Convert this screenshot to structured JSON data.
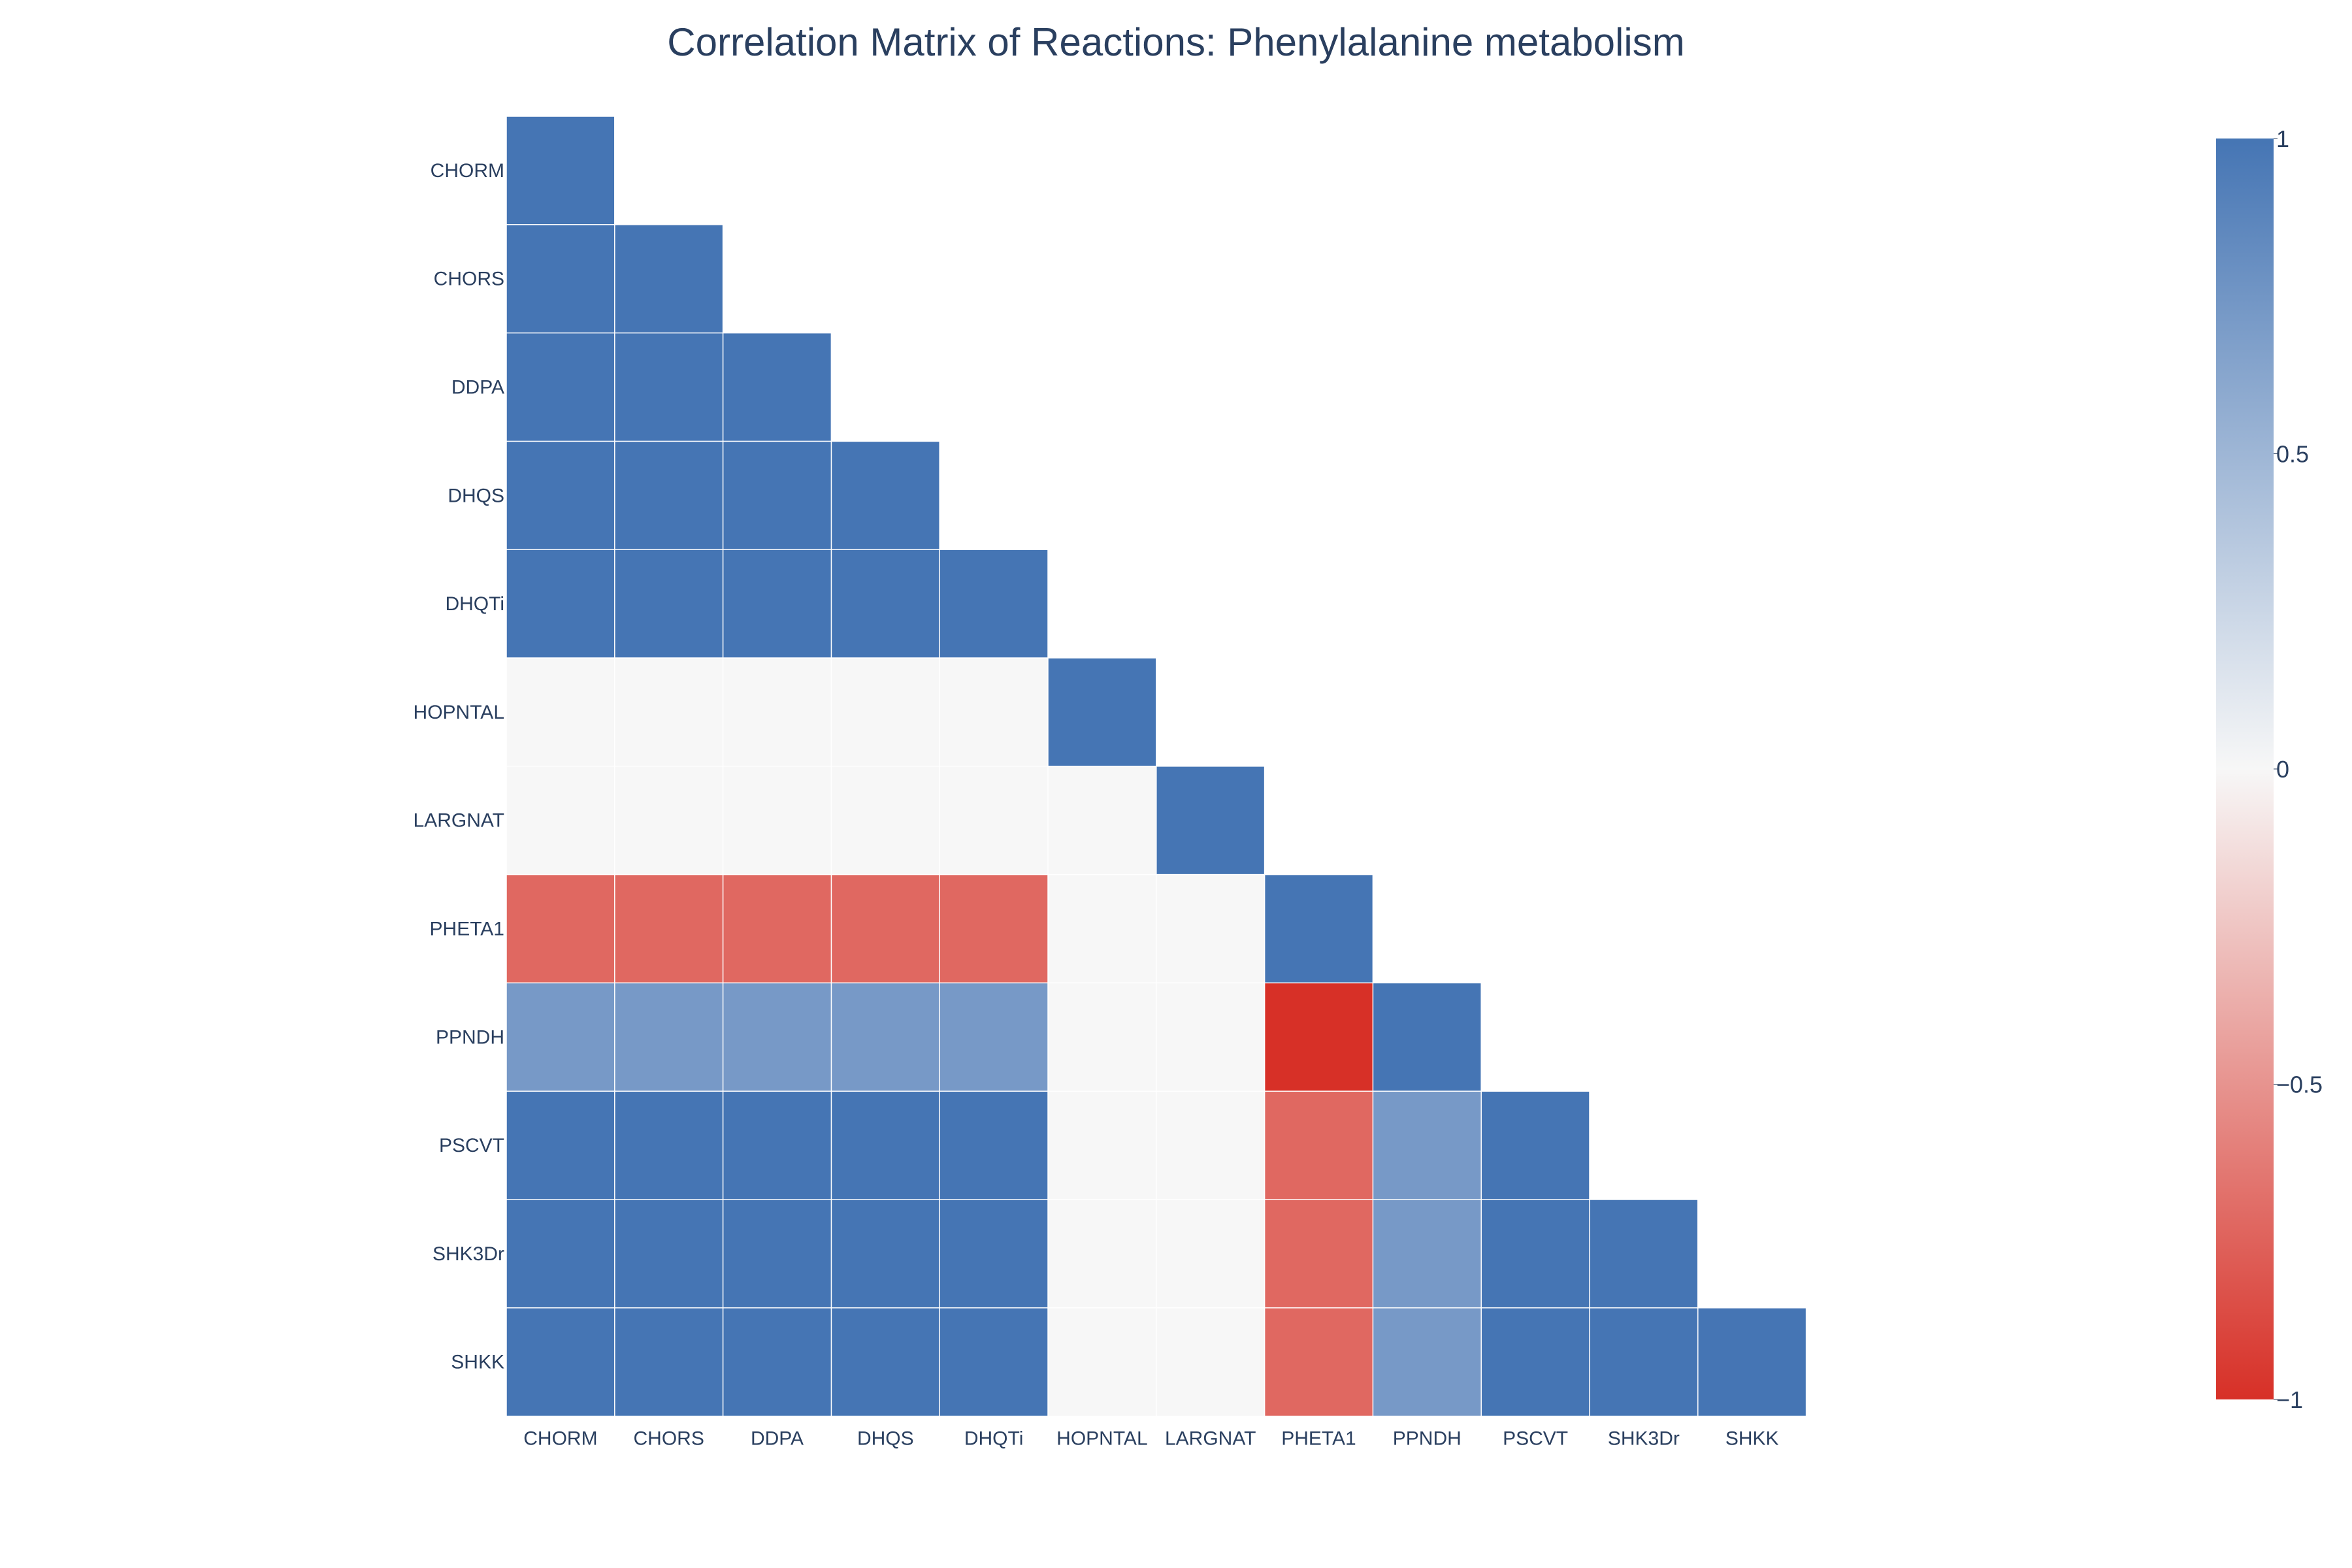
{
  "chart_data": {
    "type": "heatmap",
    "title": "Correlation Matrix of Reactions: Phenylalanine metabolism",
    "xlabel": "",
    "ylabel": "",
    "lower_triangle_only": true,
    "categories": [
      "CHORM",
      "CHORS",
      "DDPA",
      "DHQS",
      "DHQTi",
      "HOPNTAL",
      "LARGNAT",
      "PHETA1",
      "PPNDH",
      "PSCVT",
      "SHK3Dr",
      "SHKK"
    ],
    "matrix": [
      [
        1.0,
        null,
        null,
        null,
        null,
        null,
        null,
        null,
        null,
        null,
        null,
        null
      ],
      [
        1.0,
        1.0,
        null,
        null,
        null,
        null,
        null,
        null,
        null,
        null,
        null,
        null
      ],
      [
        1.0,
        1.0,
        1.0,
        null,
        null,
        null,
        null,
        null,
        null,
        null,
        null,
        null
      ],
      [
        1.0,
        1.0,
        1.0,
        1.0,
        null,
        null,
        null,
        null,
        null,
        null,
        null,
        null
      ],
      [
        1.0,
        1.0,
        1.0,
        1.0,
        1.0,
        null,
        null,
        null,
        null,
        null,
        null,
        null
      ],
      [
        0.0,
        0.0,
        0.0,
        0.0,
        0.0,
        1.0,
        null,
        null,
        null,
        null,
        null,
        null
      ],
      [
        0.0,
        0.0,
        0.0,
        0.0,
        0.0,
        0.0,
        1.0,
        null,
        null,
        null,
        null,
        null
      ],
      [
        -0.72,
        -0.72,
        -0.72,
        -0.72,
        -0.72,
        0.0,
        0.0,
        1.0,
        null,
        null,
        null,
        null
      ],
      [
        0.72,
        0.72,
        0.72,
        0.72,
        0.72,
        0.0,
        0.0,
        -1.0,
        1.0,
        null,
        null,
        null
      ],
      [
        1.0,
        1.0,
        1.0,
        1.0,
        1.0,
        0.0,
        0.0,
        -0.72,
        0.72,
        1.0,
        null,
        null
      ],
      [
        1.0,
        1.0,
        1.0,
        1.0,
        1.0,
        0.0,
        0.0,
        -0.72,
        0.72,
        1.0,
        1.0,
        null
      ],
      [
        1.0,
        1.0,
        1.0,
        1.0,
        1.0,
        0.0,
        0.0,
        -0.72,
        0.72,
        1.0,
        1.0,
        1.0
      ]
    ],
    "zlim": [
      -1,
      1
    ],
    "colorscale": [
      [
        0.0,
        "#d73027"
      ],
      [
        0.5,
        "#f7f7f7"
      ],
      [
        1.0,
        "#4575b4"
      ]
    ],
    "colorbar": {
      "ticks": [
        1,
        0.5,
        0,
        -0.5,
        -1
      ],
      "tick_labels": [
        "1",
        "0.5",
        "0",
        "−0.5",
        "−1"
      ]
    },
    "grid": false,
    "cell_border_color": "#ffffff"
  }
}
